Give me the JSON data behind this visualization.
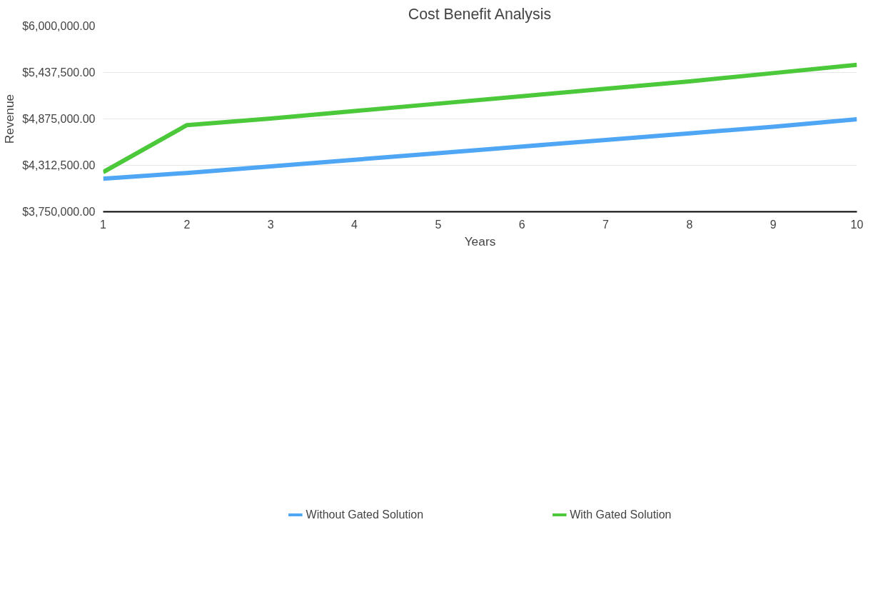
{
  "chart_data": {
    "type": "line",
    "title": "Cost Benefit Analysis",
    "xlabel": "Years",
    "ylabel": "Revenue",
    "x": [
      1,
      2,
      3,
      4,
      5,
      6,
      7,
      8,
      9,
      10
    ],
    "series": [
      {
        "name": "Without Gated Solution",
        "color": "#4ea6f5",
        "values": [
          4150000,
          4220000,
          4300000,
          4380000,
          4460000,
          4540000,
          4620000,
          4700000,
          4780000,
          4870000
        ]
      },
      {
        "name": "With Gated Solution",
        "color": "#4cc93a",
        "values": [
          4230000,
          4800000,
          4880000,
          4970000,
          5060000,
          5150000,
          5240000,
          5330000,
          5430000,
          5530000
        ]
      }
    ],
    "xlim": [
      1,
      10
    ],
    "xticks": [
      1,
      2,
      3,
      4,
      5,
      6,
      7,
      8,
      9,
      10
    ],
    "ylim": [
      3750000,
      6000000
    ],
    "yticks": [
      {
        "value": 3750000,
        "label": "$3,750,000.00"
      },
      {
        "value": 4312500,
        "label": "$4,312,500.00"
      },
      {
        "value": 4875000,
        "label": "$4,875,000.00"
      },
      {
        "value": 5437500,
        "label": "$5,437,500.00"
      },
      {
        "value": 6000000,
        "label": "$6,000,000.00"
      }
    ],
    "grid": "y",
    "legend": "bottom",
    "marker": "none",
    "line_style": "solid"
  }
}
